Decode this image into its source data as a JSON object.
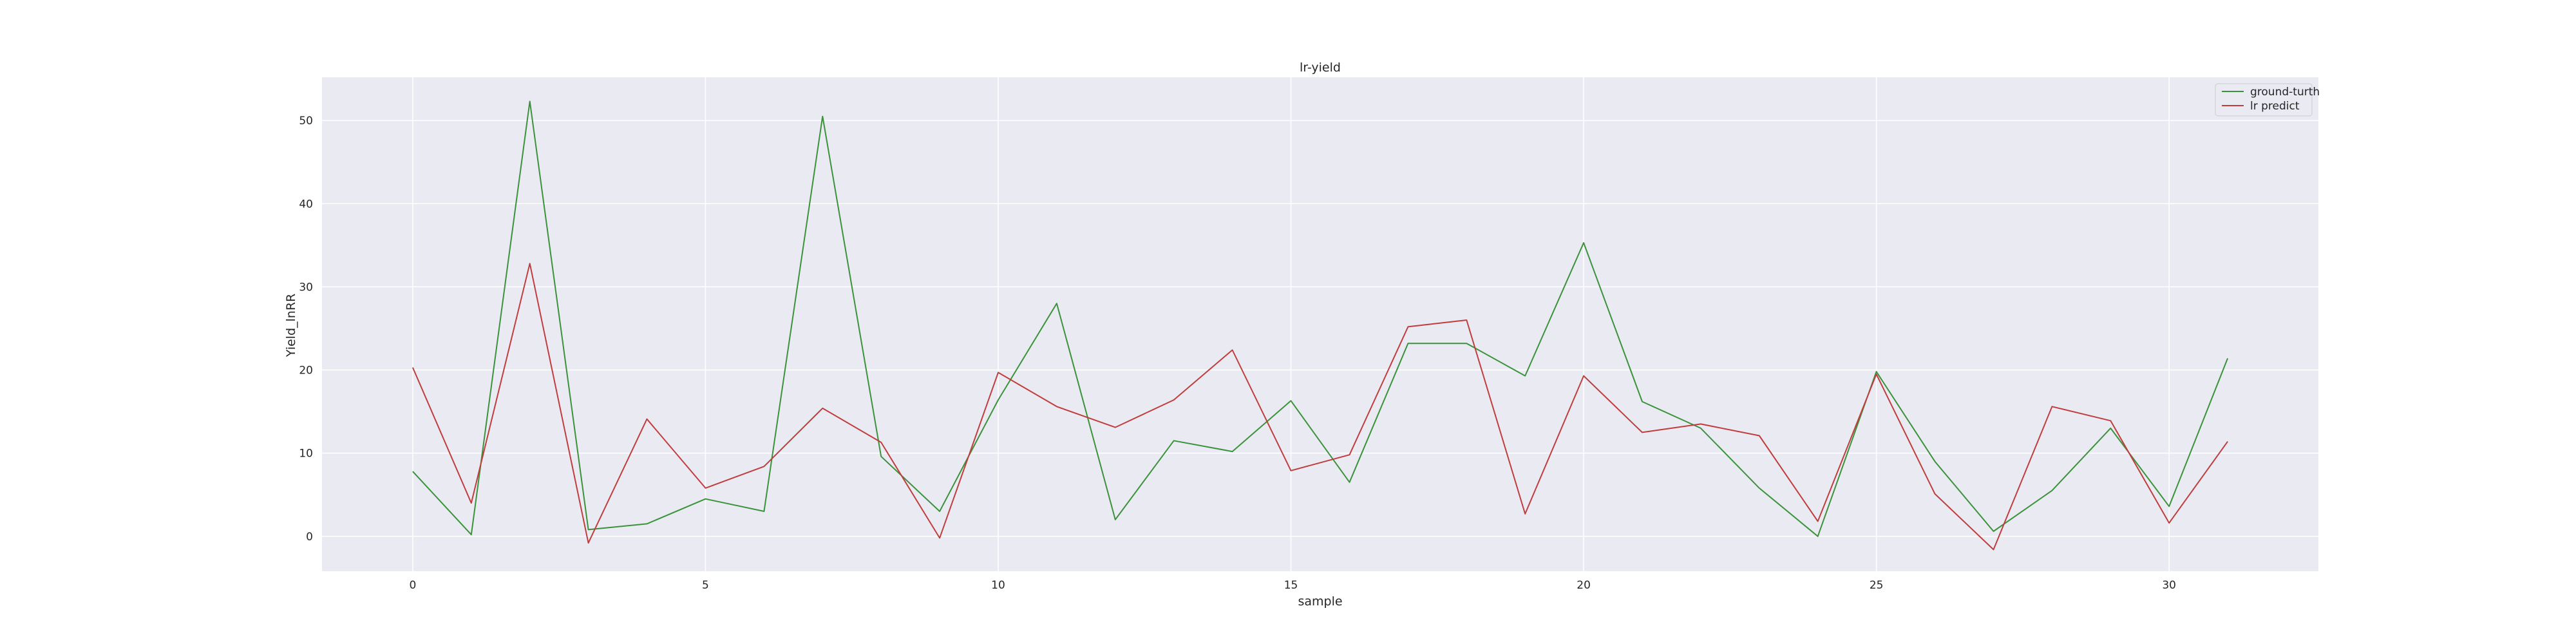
{
  "chart_data": {
    "type": "line",
    "title": "lr-yield",
    "xlabel": "sample",
    "ylabel": "Yield_lnRR",
    "xlim": [
      -1.55,
      32.55
    ],
    "ylim": [
      -4.2,
      55.2
    ],
    "xticks": [
      0,
      5,
      10,
      15,
      20,
      25,
      30
    ],
    "yticks": [
      0,
      10,
      20,
      30,
      40,
      50
    ],
    "grid": true,
    "legend_position": "top-right",
    "background": "#eaeaf2",
    "x": [
      0,
      1,
      2,
      3,
      4,
      5,
      6,
      7,
      8,
      9,
      10,
      11,
      12,
      13,
      14,
      15,
      16,
      17,
      18,
      19,
      20,
      21,
      22,
      23,
      24,
      25,
      26,
      27,
      28,
      29,
      30,
      31
    ],
    "series": [
      {
        "name": "ground-turth",
        "color": "#3a923a",
        "values": [
          7.8,
          0.2,
          52.3,
          0.8,
          1.5,
          4.5,
          3.0,
          50.5,
          9.6,
          3.0,
          16.4,
          28.0,
          2.0,
          11.5,
          10.2,
          16.3,
          6.5,
          23.2,
          23.2,
          19.3,
          35.3,
          16.2,
          13.0,
          5.8,
          0.0,
          19.8,
          9.0,
          0.6,
          5.5,
          13.0,
          3.6,
          21.4
        ]
      },
      {
        "name": "lr predict",
        "color": "#c03d3e",
        "values": [
          20.3,
          4.0,
          32.8,
          -0.8,
          14.1,
          5.8,
          8.4,
          15.4,
          11.3,
          -0.2,
          19.7,
          15.6,
          13.1,
          16.4,
          22.4,
          7.9,
          9.8,
          25.2,
          26.0,
          2.7,
          19.3,
          12.5,
          13.5,
          12.1,
          1.8,
          19.5,
          5.1,
          -1.6,
          15.6,
          13.9,
          1.6,
          11.4
        ]
      }
    ]
  }
}
